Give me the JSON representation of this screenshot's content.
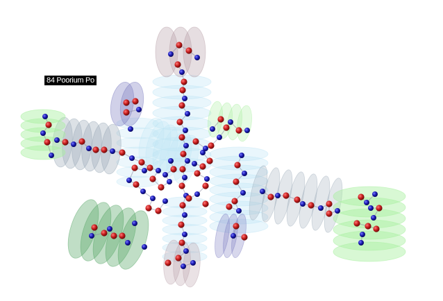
{
  "tooltip": {
    "text": "84 Poorium Po"
  },
  "colors": {
    "atom_red": "#c81e1e",
    "atom_blue": "#1a1ab4",
    "disk_cyan": "#bfe6f5",
    "disk_green": "#a8f0a0",
    "disk_dark_green": "#5aa86a",
    "disk_mauve": "#b8a0a8",
    "disk_purple": "#7a7ac0",
    "disk_slate": "#9aaab8"
  },
  "icons": {
    "atom": "sphere-icon",
    "orbital": "ellipse-disk-icon"
  }
}
